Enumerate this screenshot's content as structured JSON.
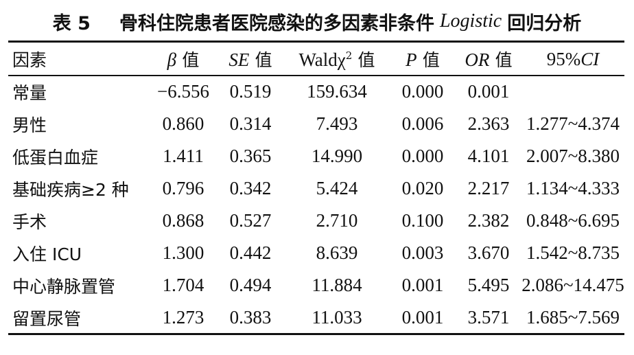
{
  "title": {
    "label": "表 5",
    "text_before": "骨科住院患者医院感染的多因素非条件",
    "latin": "Logistic",
    "text_after": "回归分析"
  },
  "table": {
    "headers": {
      "factor": "因素",
      "beta_sym": "β",
      "beta_suffix": "值",
      "se_sym": "SE",
      "se_suffix": "值",
      "wald_sym": "Waldχ",
      "wald_sup": "2",
      "wald_suffix": "值",
      "p_sym": "P",
      "p_suffix": "值",
      "or_sym": "OR",
      "or_suffix": "值",
      "ci_prefix": "95%",
      "ci_sym": "CI"
    },
    "rows": [
      {
        "factor": "常量",
        "beta": "−6.556",
        "se": "0.519",
        "wald": "159.634",
        "p": "0.000",
        "or": "0.001",
        "ci": ""
      },
      {
        "factor": "男性",
        "beta": "0.860",
        "se": "0.314",
        "wald": "7.493",
        "p": "0.006",
        "or": "2.363",
        "ci": "1.277~4.374"
      },
      {
        "factor": "低蛋白血症",
        "beta": "1.411",
        "se": "0.365",
        "wald": "14.990",
        "p": "0.000",
        "or": "4.101",
        "ci": "2.007~8.380"
      },
      {
        "factor": "基础疾病≥2 种",
        "beta": "0.796",
        "se": "0.342",
        "wald": "5.424",
        "p": "0.020",
        "or": "2.217",
        "ci": "1.134~4.333"
      },
      {
        "factor": "手术",
        "beta": "0.868",
        "se": "0.527",
        "wald": "2.710",
        "p": "0.100",
        "or": "2.382",
        "ci": "0.848~6.695"
      },
      {
        "factor": "入住 ICU",
        "beta": "1.300",
        "se": "0.442",
        "wald": "8.639",
        "p": "0.003",
        "or": "3.670",
        "ci": "1.542~8.735"
      },
      {
        "factor": "中心静脉置管",
        "beta": "1.704",
        "se": "0.494",
        "wald": "11.884",
        "p": "0.001",
        "or": "5.495",
        "ci": "2.086~14.475"
      },
      {
        "factor": "留置尿管",
        "beta": "1.273",
        "se": "0.383",
        "wald": "11.033",
        "p": "0.001",
        "or": "3.571",
        "ci": "1.685~7.569"
      }
    ]
  }
}
